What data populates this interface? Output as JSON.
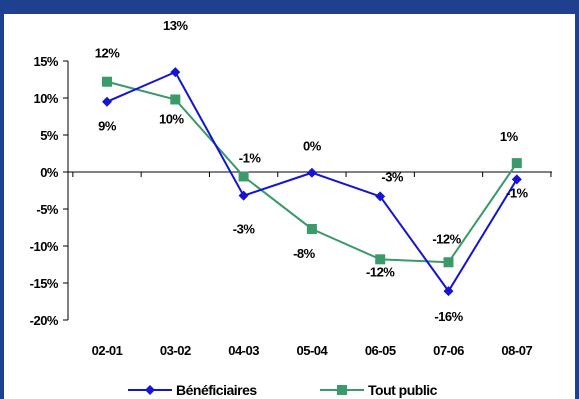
{
  "title": "",
  "chart_data": {
    "type": "line",
    "categories": [
      "02-01",
      "03-02",
      "04-03",
      "05-04",
      "06-05",
      "07-06",
      "08-07"
    ],
    "series": [
      {
        "name": "Bénéficiaires",
        "color": "#1414d2",
        "marker": "diamond",
        "values": [
          9.5,
          13.5,
          -3.2,
          -0.1,
          -3.3,
          -16.1,
          -1.0
        ],
        "labels": [
          "9%",
          "13%",
          "-3%",
          "0%",
          "-3%",
          "-16%",
          "-1%"
        ]
      },
      {
        "name": "Tout public",
        "color": "#3a9a6a",
        "marker": "square",
        "values": [
          12.2,
          9.8,
          -0.6,
          -7.7,
          -11.8,
          -12.2,
          1.2
        ],
        "labels": [
          "12%",
          "10%",
          "-1%",
          "-8%",
          "-12%",
          "-12%",
          "1%"
        ]
      }
    ],
    "y_ticks": [
      "15%",
      "10%",
      "5%",
      "0%",
      "-5%",
      "-10%",
      "-15%",
      "-20%"
    ],
    "ylim": [
      -20,
      15
    ],
    "xlabel": "",
    "ylabel": "",
    "grid": false,
    "legend_position": "bottom"
  }
}
